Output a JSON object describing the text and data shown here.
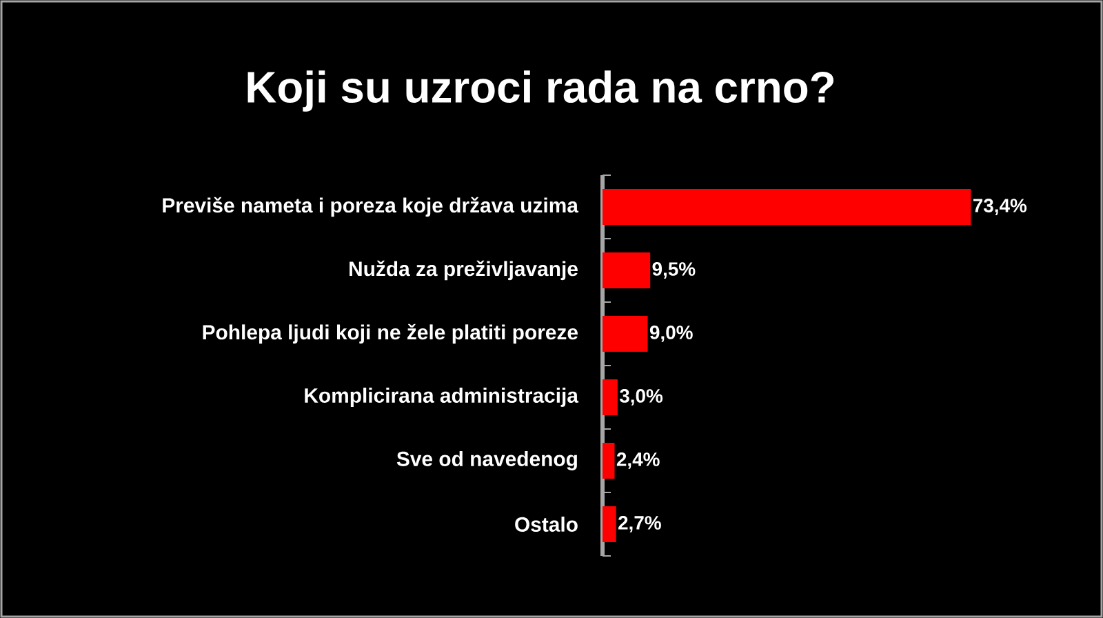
{
  "chart_data": {
    "type": "bar",
    "orientation": "horizontal",
    "title": "Koji su uzroci rada na crno?",
    "categories": [
      "Previše nameta i poreza koje država uzima",
      "Nužda za preživljavanje",
      "Pohlepa ljudi koji ne žele platiti poreze",
      "Komplicirana administracija",
      "Sve od navedenog",
      "Ostalo"
    ],
    "values": [
      73.4,
      9.5,
      9.0,
      3.0,
      2.4,
      2.7
    ],
    "value_labels": [
      "73,4%",
      "9,5%",
      "9,0%",
      "3,0%",
      "2,4%",
      "2,7%"
    ],
    "color": "#ff0000",
    "xlim": [
      0,
      100
    ]
  }
}
